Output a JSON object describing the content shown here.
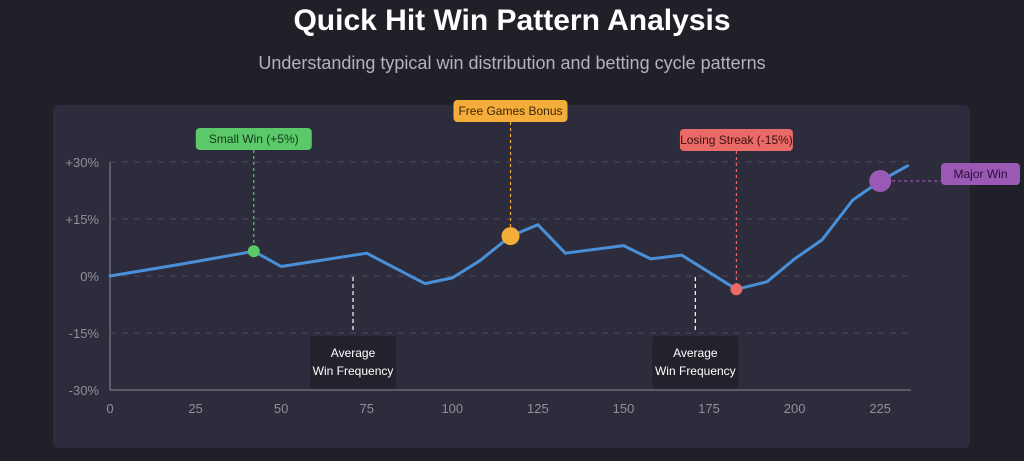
{
  "title": "Quick Hit Win Pattern Analysis",
  "subtitle": "Understanding typical win distribution and betting cycle patterns",
  "chart_data": {
    "type": "line",
    "x": [
      0,
      20,
      42,
      50,
      75,
      92,
      100,
      108,
      117,
      125,
      133,
      150,
      158,
      167,
      183,
      192,
      200,
      208,
      217,
      225,
      233
    ],
    "series": [
      {
        "values": [
          0,
          3,
          6.5,
          2.5,
          6,
          -2,
          -0.5,
          4,
          10.5,
          13.5,
          6,
          8,
          4.5,
          5.5,
          -3.5,
          -1.5,
          4.5,
          9.5,
          20,
          25,
          29
        ],
        "color": "#4a90d9"
      }
    ],
    "xlim": [
      0,
      234
    ],
    "ylim": [
      -30,
      30
    ],
    "xticks": [
      "0",
      "25",
      "50",
      "75",
      "100",
      "125",
      "150",
      "175",
      "200",
      "225"
    ],
    "xtick_values": [
      0,
      25,
      50,
      75,
      100,
      125,
      150,
      175,
      200,
      225
    ],
    "yticks": [
      "+30%",
      "+15%",
      "0%",
      "-15%",
      "-30%"
    ],
    "ytick_values": [
      30,
      15,
      0,
      -15,
      -30
    ],
    "grid": "horizontal-dashed",
    "annotations": [
      {
        "label": "Small Win (+5%)",
        "x": 42,
        "y": 6.5,
        "color": "#5bc96a",
        "text_color": "#14381a",
        "style": "callout-above"
      },
      {
        "label": "Free Games Bonus",
        "x": 117,
        "y": 10.5,
        "color": "#f4ac3b",
        "text_color": "#3a2606",
        "style": "callout-above"
      },
      {
        "label": "Losing Streak (-15%)",
        "x": 183,
        "y": -3.5,
        "color": "#e96a66",
        "text_color": "#3d0f0e",
        "style": "callout-above"
      },
      {
        "label": "Major Win",
        "x": 225,
        "y": 25,
        "color": "#9b59b6",
        "text_color": "#2a0f36",
        "style": "callout-right"
      }
    ],
    "notes": [
      {
        "lines": [
          "Average",
          "Win Frequency"
        ],
        "x": 71
      },
      {
        "lines": [
          "Average",
          "Win Frequency"
        ],
        "x": 171
      }
    ]
  }
}
